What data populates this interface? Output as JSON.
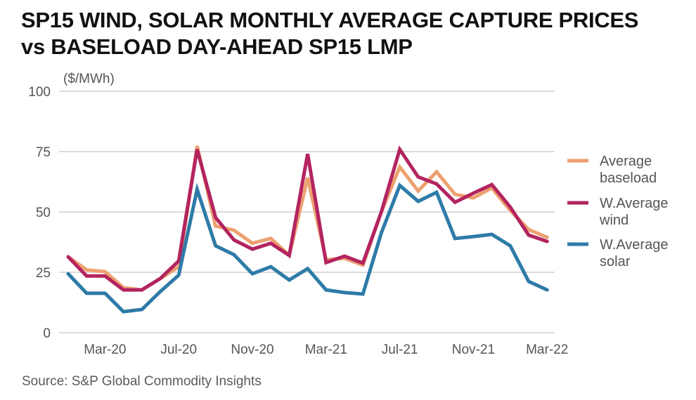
{
  "title_lines": [
    "SP15 WIND, SOLAR MONTHLY AVERAGE CAPTURE PRICES",
    "vs BASELOAD DAY-AHEAD SP15 LMP"
  ],
  "source": "Source: S&P Global Commodity Insights",
  "chart_data": {
    "type": "line",
    "title": "SP15 WIND, SOLAR MONTHLY AVERAGE CAPTURE PRICES vs BASELOAD DAY-AHEAD SP15 LMP",
    "ylabel": "($/MWh)",
    "xlabel": "",
    "ylim": [
      0,
      100
    ],
    "yticks": [
      0,
      25,
      50,
      75,
      100
    ],
    "grid": true,
    "legend_position": "right",
    "x": [
      "Jan-20",
      "Feb-20",
      "Mar-20",
      "Apr-20",
      "May-20",
      "Jun-20",
      "Jul-20",
      "Aug-20",
      "Sep-20",
      "Oct-20",
      "Nov-20",
      "Dec-20",
      "Jan-21",
      "Feb-21",
      "Mar-21",
      "Apr-21",
      "May-21",
      "Jun-21",
      "Jul-21",
      "Aug-21",
      "Sep-21",
      "Oct-21",
      "Nov-21",
      "Dec-21",
      "Jan-22",
      "Feb-22",
      "Mar-22"
    ],
    "xtick_labels": [
      "Mar-20",
      "Jul-20",
      "Nov-20",
      "Mar-21",
      "Jul-21",
      "Nov-21",
      "Mar-22"
    ],
    "series": [
      {
        "name": "Average baseload",
        "legend_lines": [
          "Average",
          "baseload"
        ],
        "color": "#EDA070",
        "values": [
          31.4,
          26.0,
          25.3,
          18.6,
          17.7,
          22.4,
          27.3,
          77.3,
          44.2,
          42.4,
          37.0,
          39.0,
          32.0,
          64.2,
          30.2,
          30.8,
          28.0,
          50.0,
          68.6,
          58.7,
          66.6,
          57.3,
          55.8,
          59.9,
          50.6,
          42.7,
          39.5
        ]
      },
      {
        "name": "W.Average wind",
        "legend_lines": [
          "W.Average",
          "wind"
        ],
        "color": "#B3245F",
        "values": [
          31.4,
          23.5,
          23.5,
          17.7,
          17.7,
          22.4,
          29.7,
          75.9,
          47.7,
          38.4,
          34.6,
          37.0,
          32.0,
          74.0,
          29.0,
          31.7,
          28.8,
          50.0,
          75.9,
          64.5,
          61.6,
          54.0,
          57.8,
          61.3,
          52.0,
          40.4,
          37.8
        ]
      },
      {
        "name": "W.Average solar",
        "legend_lines": [
          "W.Average",
          "solar"
        ],
        "color": "#2E7BA8",
        "values": [
          24.4,
          16.3,
          16.3,
          8.7,
          9.6,
          17.0,
          23.8,
          59.3,
          36.0,
          32.3,
          24.4,
          27.3,
          21.8,
          26.5,
          17.7,
          16.6,
          16.0,
          41.3,
          61.0,
          54.4,
          58.1,
          39.0,
          39.8,
          40.7,
          36.0,
          21.2,
          17.7
        ]
      }
    ]
  }
}
